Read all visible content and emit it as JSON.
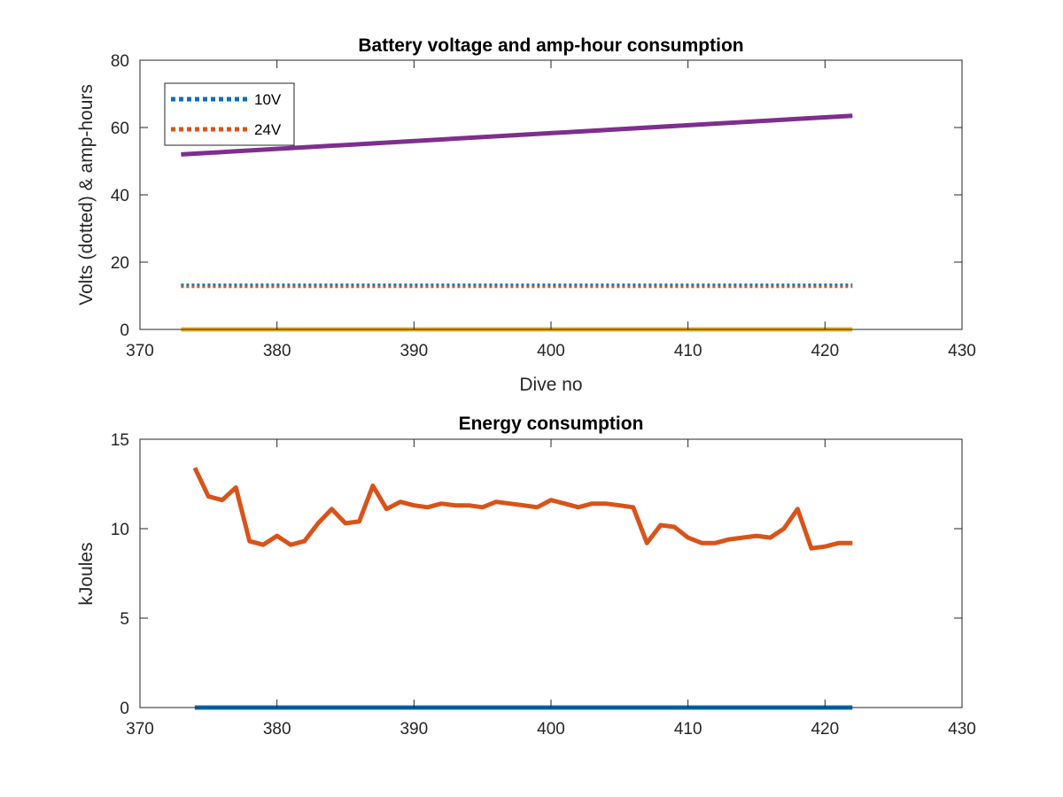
{
  "chart_data": [
    {
      "type": "line",
      "title": "Battery voltage and amp-hour consumption",
      "xlabel": "Dive no",
      "ylabel": "Volts (dotted) & amp-hours",
      "xlim": [
        370,
        430
      ],
      "ylim": [
        0,
        80
      ],
      "xticks": [
        370,
        380,
        390,
        400,
        410,
        420,
        430
      ],
      "yticks": [
        0,
        20,
        40,
        60,
        80
      ],
      "legend": {
        "position": "top-left",
        "entries": [
          "10V",
          "24V"
        ]
      },
      "series": [
        {
          "name": "10V",
          "style": "dotted",
          "color": "#0072BD",
          "x": [
            373,
            422
          ],
          "y": [
            13.2,
            13.2
          ]
        },
        {
          "name": "24V",
          "style": "dotted",
          "color": "#D95319",
          "x": [
            373,
            422
          ],
          "y": [
            12.7,
            12.7
          ]
        },
        {
          "style": "solid",
          "color": "#7E2F8E",
          "x": [
            373,
            422
          ],
          "y": [
            52,
            63.5
          ]
        },
        {
          "style": "solid",
          "color": "#EDB120",
          "x": [
            373,
            422
          ],
          "y": [
            0,
            0
          ]
        }
      ]
    },
    {
      "type": "line",
      "title": "Energy consumption",
      "xlabel": "",
      "ylabel": "kJoules",
      "xlim": [
        370,
        430
      ],
      "ylim": [
        0,
        15
      ],
      "xticks": [
        370,
        380,
        390,
        400,
        410,
        420,
        430
      ],
      "yticks": [
        0,
        5,
        10,
        15
      ],
      "series": [
        {
          "style": "solid",
          "color": "#D95319",
          "x": [
            374,
            375,
            376,
            377,
            378,
            379,
            380,
            381,
            382,
            383,
            384,
            385,
            386,
            387,
            388,
            389,
            390,
            391,
            392,
            393,
            394,
            395,
            396,
            397,
            398,
            399,
            400,
            401,
            402,
            403,
            404,
            405,
            406,
            407,
            408,
            409,
            410,
            411,
            412,
            413,
            414,
            415,
            416,
            417,
            418,
            419,
            420,
            421,
            422
          ],
          "y": [
            13.4,
            11.8,
            11.6,
            12.3,
            9.3,
            9.1,
            9.6,
            9.1,
            9.3,
            10.3,
            11.1,
            10.3,
            10.4,
            12.4,
            11.1,
            11.5,
            11.3,
            11.2,
            11.4,
            11.3,
            11.3,
            11.2,
            11.5,
            11.4,
            11.3,
            11.2,
            11.6,
            11.4,
            11.2,
            11.4,
            11.4,
            11.3,
            11.2,
            9.2,
            10.2,
            10.1,
            9.5,
            9.2,
            9.2,
            9.4,
            9.5,
            9.6,
            9.5,
            10.0,
            11.1,
            8.9,
            9.0,
            9.2,
            9.2
          ]
        },
        {
          "style": "solid",
          "color": "#0072BD",
          "x": [
            374,
            422
          ],
          "y": [
            0,
            0
          ]
        }
      ]
    }
  ]
}
